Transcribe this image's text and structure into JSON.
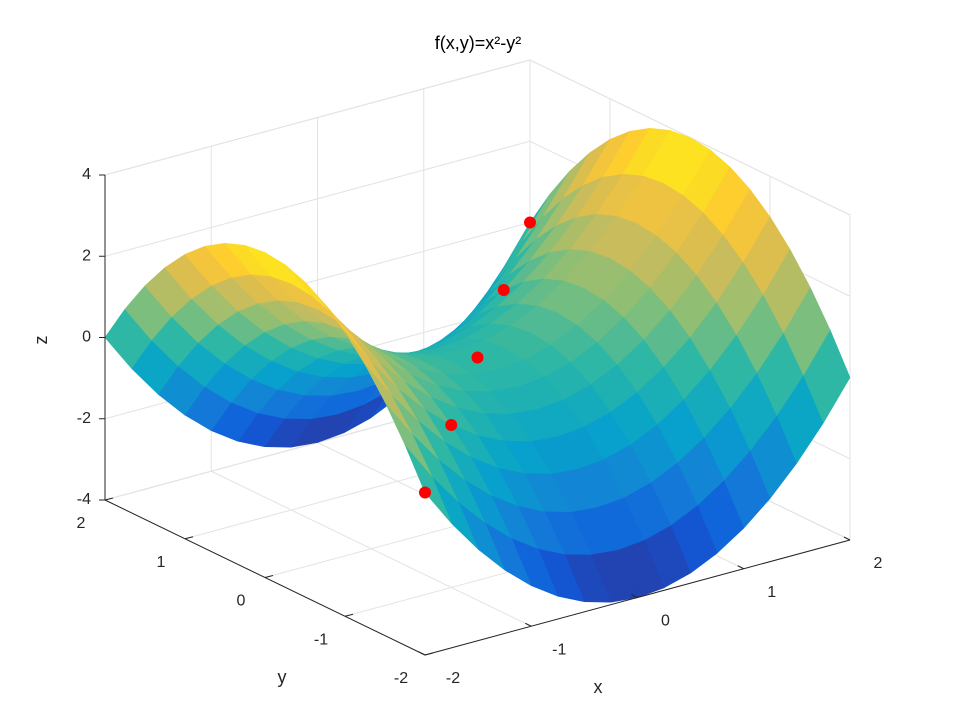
{
  "chart_data": {
    "type": "surface",
    "title": "f(x,y)=x²-y²",
    "xlabel": "x",
    "ylabel": "y",
    "zlabel": "z",
    "x": [
      -2,
      -1.75,
      -1.5,
      -1.25,
      -1,
      -0.75,
      -0.5,
      -0.25,
      0,
      0.25,
      0.5,
      0.75,
      1,
      1.25,
      1.5,
      1.75,
      2
    ],
    "y": [
      -2,
      -1.75,
      -1.5,
      -1.25,
      -1,
      -0.75,
      -0.5,
      -0.25,
      0,
      0.25,
      0.5,
      0.75,
      1,
      1.25,
      1.5,
      1.75,
      2
    ],
    "z": [
      [
        0,
        -0.9375,
        -1.75,
        -2.4375,
        -3,
        -3.4375,
        -3.75,
        -3.9375,
        -4,
        -3.9375,
        -3.75,
        -3.4375,
        -3,
        -2.4375,
        -1.75,
        -0.9375,
        0
      ],
      [
        0.9375,
        0,
        -0.8125,
        -1.5,
        -2.0625,
        -2.5,
        -2.8125,
        -3,
        -3.0625,
        -3,
        -2.8125,
        -2.5,
        -2.0625,
        -1.5,
        -0.8125,
        0,
        0.9375
      ],
      [
        1.75,
        0.8125,
        0,
        -0.6875,
        -1.25,
        -1.6875,
        -2,
        -2.1875,
        -2.25,
        -2.1875,
        -2,
        -1.6875,
        -1.25,
        -0.6875,
        0,
        0.8125,
        1.75
      ],
      [
        2.4375,
        1.5,
        0.6875,
        0,
        -0.5625,
        -1,
        -1.3125,
        -1.5,
        -1.5625,
        -1.5,
        -1.3125,
        -1,
        -0.5625,
        0,
        0.6875,
        1.5,
        2.4375
      ],
      [
        3,
        2.0625,
        1.25,
        0.5625,
        0,
        -0.4375,
        -0.75,
        -0.9375,
        -1,
        -0.9375,
        -0.75,
        -0.4375,
        0,
        0.5625,
        1.25,
        2.0625,
        3
      ],
      [
        3.4375,
        2.5,
        1.6875,
        1,
        0.4375,
        0,
        -0.3125,
        -0.5,
        -0.5625,
        -0.5,
        -0.3125,
        0,
        0.4375,
        1,
        1.6875,
        2.5,
        3.4375
      ],
      [
        3.75,
        2.8125,
        2,
        1.3125,
        0.75,
        0.3125,
        0,
        -0.1875,
        -0.25,
        -0.1875,
        0,
        0.3125,
        0.75,
        1.3125,
        2,
        2.8125,
        3.75
      ],
      [
        3.9375,
        3,
        2.1875,
        1.5,
        0.9375,
        0.5,
        0.1875,
        0,
        -0.0625,
        0,
        0.1875,
        0.5,
        0.9375,
        1.5,
        2.1875,
        3,
        3.9375
      ],
      [
        4,
        3.0625,
        2.25,
        1.5625,
        1,
        0.5625,
        0.25,
        0.0625,
        0,
        0.0625,
        0.25,
        0.5625,
        1,
        1.5625,
        2.25,
        3.0625,
        4
      ],
      [
        3.9375,
        3,
        2.1875,
        1.5,
        0.9375,
        0.5,
        0.1875,
        0,
        -0.0625,
        0,
        0.1875,
        0.5,
        0.9375,
        1.5,
        2.1875,
        3,
        3.9375
      ],
      [
        3.75,
        2.8125,
        2,
        1.3125,
        0.75,
        0.3125,
        0,
        -0.1875,
        -0.25,
        -0.1875,
        0,
        0.3125,
        0.75,
        1.3125,
        2,
        2.8125,
        3.75
      ],
      [
        3.4375,
        2.5,
        1.6875,
        1,
        0.4375,
        0,
        -0.3125,
        -0.5,
        -0.5625,
        -0.5,
        -0.3125,
        0,
        0.4375,
        1,
        1.6875,
        2.5,
        3.4375
      ],
      [
        3,
        2.0625,
        1.25,
        0.5625,
        0,
        -0.4375,
        -0.75,
        -0.9375,
        -1,
        -0.9375,
        -0.75,
        -0.4375,
        0,
        0.5625,
        1.25,
        2.0625,
        3
      ],
      [
        2.4375,
        1.5,
        0.6875,
        0,
        -0.5625,
        -1,
        -1.3125,
        -1.5,
        -1.5625,
        -1.5,
        -1.3125,
        -1,
        -0.5625,
        0,
        0.6875,
        1.5,
        2.4375
      ],
      [
        1.75,
        0.8125,
        0,
        -0.6875,
        -1.25,
        -1.6875,
        -2,
        -2.1875,
        -2.25,
        -2.1875,
        -2,
        -1.6875,
        -1.25,
        -0.6875,
        0,
        0.8125,
        1.75
      ],
      [
        0.9375,
        0,
        -0.8125,
        -1.5,
        -2.0625,
        -2.5,
        -2.8125,
        -3,
        -3.0625,
        -3,
        -2.8125,
        -2.5,
        -2.0625,
        -1.5,
        -0.8125,
        0,
        0.9375
      ],
      [
        0,
        -0.9375,
        -1.75,
        -2.4375,
        -3,
        -3.4375,
        -3.75,
        -3.9375,
        -4,
        -3.9375,
        -3.75,
        -3.4375,
        -3,
        -2.4375,
        -1.75,
        -0.9375,
        0
      ]
    ],
    "colormap": "parula",
    "xlim": [
      -2,
      2
    ],
    "ylim": [
      -2,
      2
    ],
    "zlim": [
      -4,
      4
    ],
    "xticks": [
      -2,
      -1,
      0,
      1,
      2
    ],
    "yticks": [
      -2,
      -1,
      0,
      1,
      2
    ],
    "zticks": [
      -4,
      -2,
      0,
      2,
      4
    ],
    "grid": true,
    "points": {
      "color": "#ff0000",
      "x": [
        -2,
        -1,
        0,
        1,
        2
      ],
      "y": [
        -2,
        -1,
        0,
        1,
        2
      ],
      "z": [
        0,
        0,
        0,
        0,
        0
      ]
    }
  }
}
